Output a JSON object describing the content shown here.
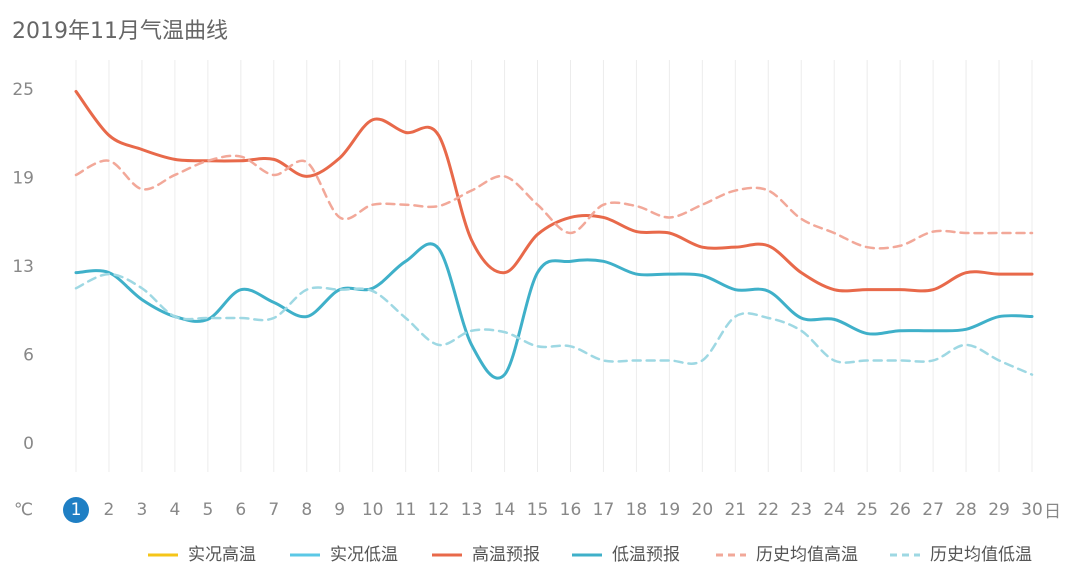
{
  "chart_data": {
    "type": "line",
    "title": "2019年11月气温曲线",
    "y_unit": "℃",
    "x_unit": "日",
    "categories": [
      "1",
      "2",
      "3",
      "4",
      "5",
      "6",
      "7",
      "8",
      "9",
      "10",
      "11",
      "12",
      "13",
      "14",
      "15",
      "16",
      "17",
      "18",
      "19",
      "20",
      "21",
      "22",
      "23",
      "24",
      "25",
      "26",
      "27",
      "28",
      "29",
      "30"
    ],
    "selected_category_index": 0,
    "ylim": [
      0,
      25
    ],
    "yticks": [
      0,
      {
        "value": 6.25,
        "label": "6"
      },
      {
        "value": 12.5,
        "label": "13"
      },
      {
        "value": 18.75,
        "label": "19"
      },
      25
    ],
    "grid": true,
    "legend": "bottom",
    "series": [
      {
        "name": "实况高温",
        "color": "#f5c518",
        "dashed": false,
        "values": [
          null,
          null,
          null,
          null,
          null,
          null,
          null,
          null,
          null,
          null,
          null,
          null,
          null,
          null,
          null,
          null,
          null,
          null,
          null,
          null,
          null,
          null,
          null,
          null,
          null,
          null,
          null,
          null,
          null,
          null
        ]
      },
      {
        "name": "实况低温",
        "color": "#5bc8e6",
        "dashed": false,
        "values": [
          null,
          null,
          null,
          null,
          null,
          null,
          null,
          null,
          null,
          null,
          null,
          null,
          null,
          null,
          null,
          null,
          null,
          null,
          null,
          null,
          null,
          null,
          null,
          null,
          null,
          null,
          null,
          null,
          null,
          null
        ]
      },
      {
        "name": "高温预报",
        "color": "#e8694a",
        "dashed": false,
        "values": [
          24.9,
          21.8,
          20.8,
          20.1,
          20.0,
          20.0,
          20.1,
          18.9,
          20.2,
          22.9,
          22.0,
          21.8,
          14.4,
          12.1,
          14.8,
          16.0,
          16.0,
          15.0,
          14.9,
          13.9,
          13.9,
          14.0,
          12.1,
          10.9,
          10.9,
          10.9,
          10.9,
          12.1,
          12.0,
          12.0
        ]
      },
      {
        "name": "低温预报",
        "color": "#3fb0c9",
        "dashed": false,
        "values": [
          12.1,
          12.1,
          10.2,
          9.0,
          8.8,
          10.9,
          10.0,
          9.0,
          10.9,
          11.0,
          12.9,
          13.8,
          7.0,
          4.9,
          12.1,
          12.9,
          12.9,
          12.0,
          12.0,
          11.9,
          10.9,
          10.8,
          8.9,
          8.8,
          7.8,
          8.0,
          8.0,
          8.1,
          9.0,
          9.0
        ]
      },
      {
        "name": "历史均值高温",
        "color": "#f2a899",
        "dashed": true,
        "values": [
          19.0,
          20.0,
          18.0,
          19.0,
          20.0,
          20.3,
          19.0,
          19.9,
          16.0,
          16.9,
          16.9,
          16.8,
          17.9,
          18.9,
          16.9,
          14.9,
          16.9,
          16.8,
          16.0,
          16.9,
          17.9,
          17.9,
          15.9,
          14.9,
          13.9,
          14.0,
          15.0,
          14.9,
          14.9,
          14.9
        ]
      },
      {
        "name": "历史均值低温",
        "color": "#9ed8e3",
        "dashed": true,
        "values": [
          11.0,
          12.0,
          11.0,
          9.0,
          8.9,
          8.9,
          8.9,
          10.9,
          10.9,
          10.8,
          8.9,
          7.0,
          8.0,
          7.9,
          6.9,
          6.9,
          5.9,
          5.9,
          5.9,
          5.9,
          9.0,
          8.9,
          8.0,
          5.9,
          5.9,
          5.9,
          5.9,
          7.0,
          5.9,
          4.9
        ]
      }
    ]
  }
}
